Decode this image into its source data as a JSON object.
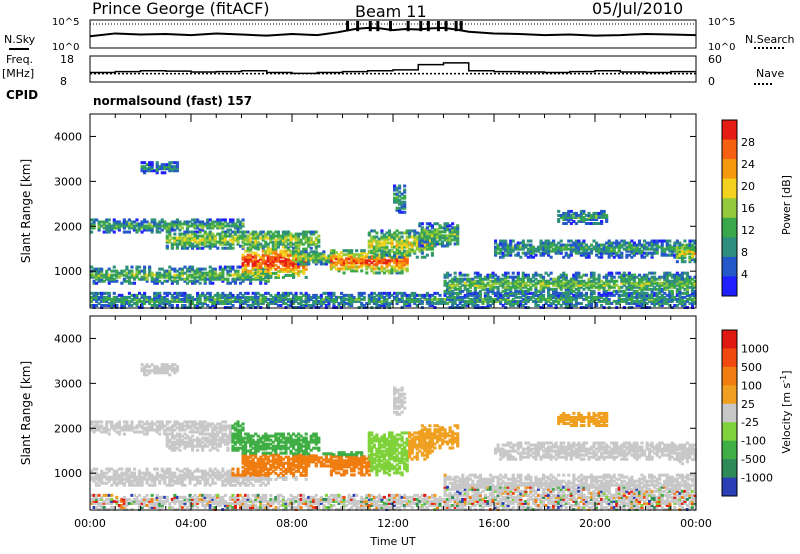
{
  "header": {
    "station": "Prince George (fitACF)",
    "beam": "Beam 11",
    "date": "05/Jul/2010"
  },
  "side_labels": {
    "nsky": "N.Sky",
    "freq": "Freq.",
    "freq_unit": "[MHz]",
    "cpid": "CPID",
    "nsearch": "N.Search",
    "nave": "Nave"
  },
  "cpid_text": "normalsound (fast) 157",
  "chart_data": [
    {
      "type": "line",
      "name": "noise",
      "y_ticks_left": [
        "10^5",
        "10^0"
      ],
      "y_ticks_right": [
        "10^5",
        "10^0"
      ],
      "x_hours": [
        0,
        1,
        2,
        3,
        4,
        5,
        6,
        7,
        8,
        9,
        9.8,
        10.5,
        11,
        11.5,
        12,
        12.5,
        13,
        13.5,
        14,
        14.5,
        15,
        16,
        17,
        18,
        19,
        20,
        21,
        22,
        23,
        24
      ],
      "nsky_log10": [
        2.1,
        2.6,
        2.4,
        2.5,
        2.3,
        2.6,
        2.4,
        2.2,
        2.5,
        2.3,
        2.8,
        3.4,
        3.6,
        3.5,
        3.2,
        3.4,
        3.3,
        3.5,
        3.6,
        3.3,
        2.9,
        2.6,
        2.5,
        2.3,
        2.4,
        2.2,
        2.3,
        2.5,
        2.4,
        2.3
      ],
      "nsky_spikes_hours": [
        10.2,
        10.6,
        11.1,
        11.4,
        11.9,
        12.6,
        13.1,
        13.4,
        13.8,
        14.1,
        14.5,
        14.7
      ]
    },
    {
      "type": "line",
      "name": "freq_nave",
      "y_ticks_left": [
        "18",
        "8"
      ],
      "y_ticks_right": [
        "60",
        "0"
      ],
      "freq_hours": [
        0,
        24
      ],
      "freq_mhz": [
        11.2,
        11.2
      ],
      "nave_hours": [
        0,
        1,
        2,
        3,
        4,
        5,
        6,
        7,
        8,
        9,
        10,
        11,
        12,
        13,
        14,
        15,
        16,
        17,
        18,
        19,
        20,
        21,
        22,
        23,
        24
      ],
      "nave": [
        22,
        24,
        26,
        25,
        23,
        24,
        26,
        22,
        20,
        22,
        24,
        26,
        28,
        40,
        44,
        26,
        24,
        23,
        22,
        24,
        26,
        23,
        22,
        24,
        24
      ]
    },
    {
      "type": "heatmap",
      "name": "power",
      "ylabel": "Slant Range [km]",
      "y_ticks": [
        1000,
        2000,
        3000,
        4000
      ],
      "ylim": [
        180,
        4500
      ],
      "colorbar_label": "Power [dB]",
      "colorbar_ticks": [
        4,
        8,
        12,
        16,
        20,
        24,
        28
      ],
      "colorbar_colors": [
        "#1f1fff",
        "#2458c8",
        "#2f8f7e",
        "#3aa84a",
        "#93c93a",
        "#f2d21e",
        "#f59a0e",
        "#f56012",
        "#e51d14"
      ]
    },
    {
      "type": "heatmap",
      "name": "velocity",
      "ylabel": "Slant Range [km]",
      "y_ticks": [
        1000,
        2000,
        3000,
        4000
      ],
      "ylim": [
        180,
        4500
      ],
      "xlabel": "Time UT",
      "x_ticks": [
        "00:00",
        "04:00",
        "08:00",
        "12:00",
        "16:00",
        "20:00",
        "00:00"
      ],
      "colorbar_label": "Velocity [m s",
      "colorbar_label_sup": "-1",
      "colorbar_label_end": "]",
      "colorbar_ticks": [
        "1000",
        "500",
        "100",
        "25",
        "-25",
        "-100",
        "-500",
        "-1000"
      ],
      "colorbar_colors": [
        "#2a3fb5",
        "#2f8a5a",
        "#3fae44",
        "#7fd23a",
        "#c8c8c8",
        "#f0a020",
        "#f07d10",
        "#f04a10",
        "#e01a12"
      ]
    }
  ],
  "colors": {
    "frame": "#000000",
    "background": "#ffffff",
    "axis_line": "#808080"
  }
}
